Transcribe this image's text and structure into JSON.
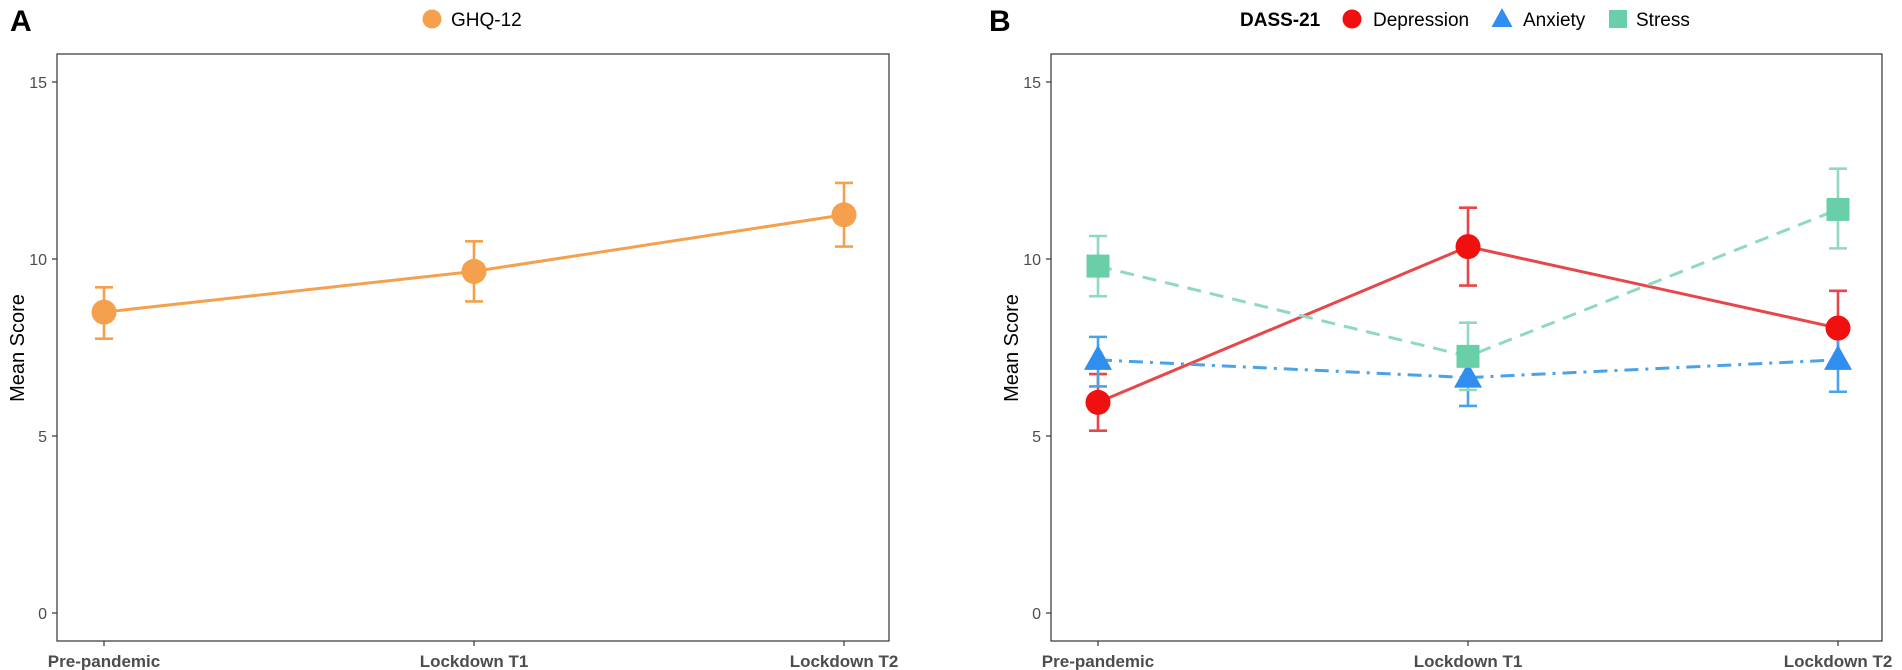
{
  "chart_data": [
    {
      "panel": "A",
      "type": "line",
      "categories": [
        "Pre-pandemic",
        "Lockdown T1",
        "Lockdown T2"
      ],
      "ylabel": "Mean Score",
      "xlabel": "",
      "ylim": [
        0,
        15
      ],
      "yticks": [
        "0",
        "5",
        "10",
        "15"
      ],
      "legend_title": "",
      "series": [
        {
          "name": "GHQ-12",
          "color": "#f5a04c",
          "marker": "circle",
          "linestyle": "solid",
          "values": [
            8.5,
            9.65,
            11.25
          ],
          "err_low": [
            7.75,
            8.8,
            10.35
          ],
          "err_high": [
            9.2,
            10.5,
            12.15
          ]
        }
      ]
    },
    {
      "panel": "B",
      "type": "line",
      "categories": [
        "Pre-pandemic",
        "Lockdown T1",
        "Lockdown T2"
      ],
      "ylabel": "Mean Score",
      "xlabel": "",
      "ylim": [
        0,
        15
      ],
      "yticks": [
        "0",
        "5",
        "10",
        "15"
      ],
      "legend_title": "DASS-21",
      "series": [
        {
          "name": "Depression",
          "color": "#e8474a",
          "marker_color": "#f01010",
          "marker": "circle",
          "linestyle": "solid",
          "values": [
            5.95,
            10.35,
            8.05
          ],
          "err_low": [
            5.15,
            9.25,
            7.05
          ],
          "err_high": [
            6.75,
            11.45,
            9.1
          ]
        },
        {
          "name": "Anxiety",
          "color": "#4aa3ea",
          "marker_color": "#2f8ef0",
          "marker": "triangle",
          "linestyle": "dashdot",
          "values": [
            7.15,
            6.65,
            7.15
          ],
          "err_low": [
            6.4,
            5.85,
            6.25
          ],
          "err_high": [
            7.8,
            7.45,
            8.05
          ]
        },
        {
          "name": "Stress",
          "color": "#8fd9bf",
          "marker_color": "#68cfa9",
          "marker": "square",
          "linestyle": "dashed",
          "values": [
            9.8,
            7.25,
            11.4
          ],
          "err_low": [
            8.95,
            6.3,
            10.3
          ],
          "err_high": [
            10.65,
            8.2,
            12.55
          ]
        }
      ]
    }
  ]
}
